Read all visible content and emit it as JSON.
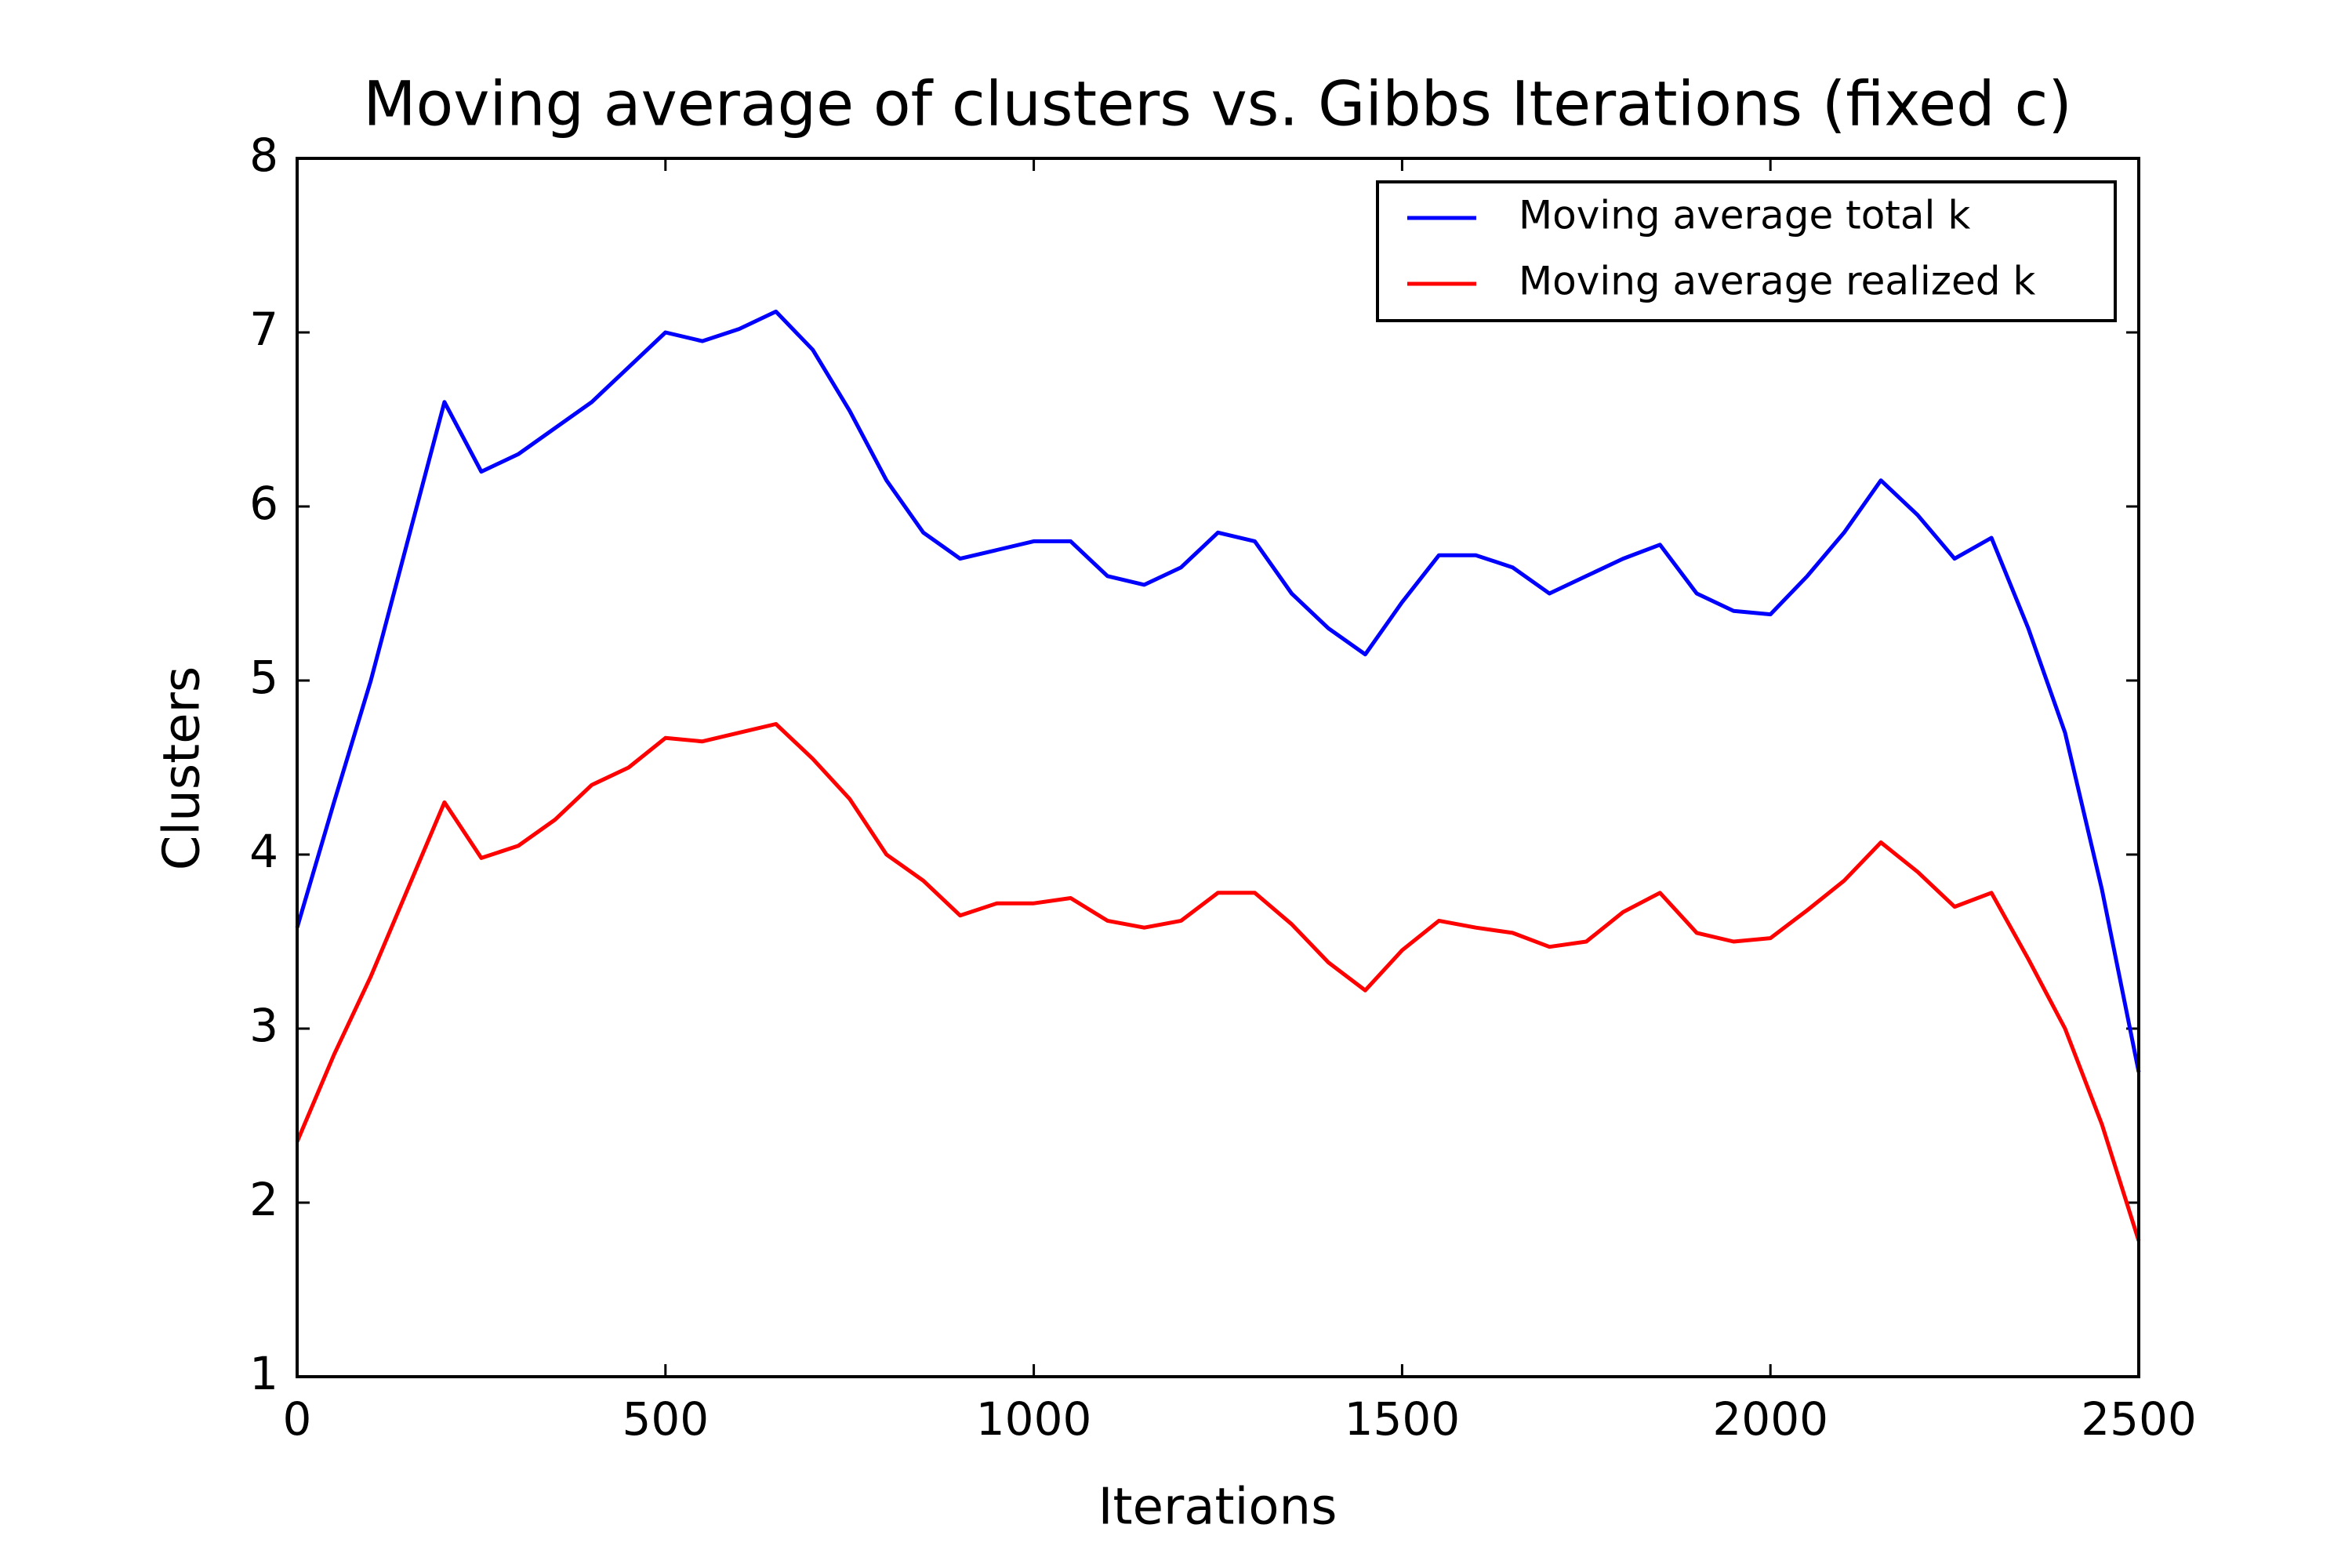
{
  "chart_data": {
    "type": "line",
    "title": "Moving average of clusters vs. Gibbs Iterations (fixed c)",
    "x_label": "Iterations",
    "y_label": "Clusters",
    "x": [
      0,
      50,
      100,
      150,
      200,
      250,
      300,
      350,
      400,
      450,
      500,
      550,
      600,
      650,
      700,
      750,
      800,
      850,
      900,
      950,
      1000,
      1050,
      1100,
      1150,
      1200,
      1250,
      1300,
      1350,
      1400,
      1450,
      1500,
      1550,
      1600,
      1650,
      1700,
      1750,
      1800,
      1850,
      1900,
      1950,
      2000,
      2050,
      2100,
      2150,
      2200,
      2250,
      2300,
      2350,
      2400,
      2450,
      2500
    ],
    "series": [
      {
        "name": "Moving average total k",
        "color": "#0000ff",
        "values": [
          3.58,
          4.3,
          5.0,
          5.8,
          6.6,
          6.2,
          6.3,
          6.45,
          6.6,
          6.8,
          7.0,
          6.95,
          7.02,
          7.12,
          6.9,
          6.55,
          6.15,
          5.85,
          5.7,
          5.75,
          5.8,
          5.8,
          5.6,
          5.55,
          5.65,
          5.85,
          5.8,
          5.5,
          5.3,
          5.15,
          5.45,
          5.72,
          5.72,
          5.65,
          5.5,
          5.6,
          5.7,
          5.78,
          5.5,
          5.4,
          5.38,
          5.6,
          5.85,
          6.15,
          5.95,
          5.7,
          5.82,
          5.3,
          4.7,
          3.8,
          2.75
        ]
      },
      {
        "name": "Moving average realized k",
        "color": "#ff0000",
        "values": [
          2.35,
          2.85,
          3.3,
          3.8,
          4.3,
          3.98,
          4.05,
          4.2,
          4.4,
          4.5,
          4.67,
          4.65,
          4.7,
          4.75,
          4.55,
          4.32,
          4.0,
          3.85,
          3.65,
          3.72,
          3.72,
          3.75,
          3.62,
          3.58,
          3.62,
          3.78,
          3.78,
          3.6,
          3.38,
          3.22,
          3.45,
          3.62,
          3.58,
          3.55,
          3.47,
          3.5,
          3.67,
          3.78,
          3.55,
          3.5,
          3.52,
          3.68,
          3.85,
          4.07,
          3.9,
          3.7,
          3.78,
          3.4,
          3.0,
          2.45,
          1.78
        ]
      }
    ],
    "xlim": [
      0,
      2500
    ],
    "xticks": [
      0,
      500,
      1000,
      1500,
      2000,
      2500
    ],
    "ylim": [
      1,
      8
    ],
    "yticks": [
      1,
      2,
      3,
      4,
      5,
      6,
      7,
      8
    ],
    "legend": "upper right",
    "grid": false
  }
}
